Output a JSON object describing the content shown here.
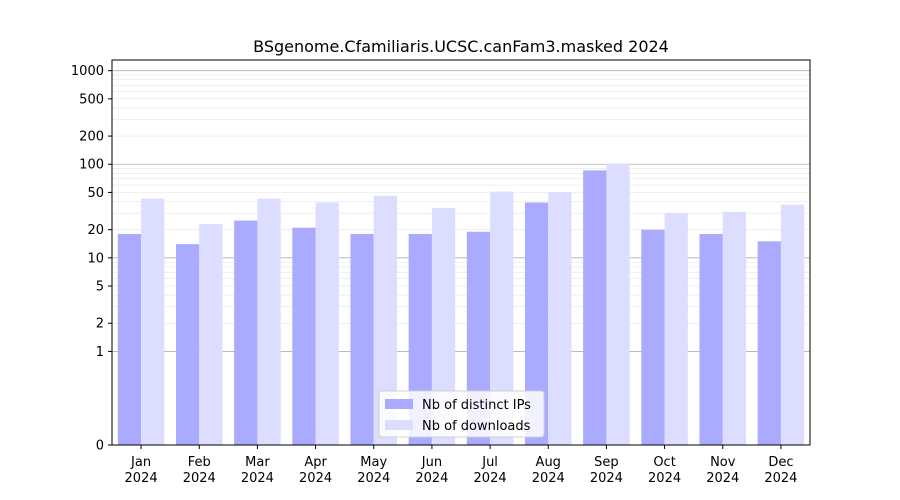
{
  "chart_data": {
    "type": "bar",
    "title": "BSgenome.Cfamiliaris.UCSC.canFam3.masked 2024",
    "xlabel": "",
    "ylabel": "",
    "yscale": "symlog",
    "yticks": [
      0,
      1,
      2,
      5,
      10,
      20,
      50,
      100,
      200,
      500,
      1000
    ],
    "ylim": [
      0,
      1300
    ],
    "categories": [
      "Jan\n2024",
      "Feb\n2024",
      "Mar\n2024",
      "Apr\n2024",
      "May\n2024",
      "Jun\n2024",
      "Jul\n2024",
      "Aug\n2024",
      "Sep\n2024",
      "Oct\n2024",
      "Nov\n2024",
      "Dec\n2024"
    ],
    "series": [
      {
        "name": "Nb of distinct IPs",
        "color": "#aaaaff",
        "values": [
          18,
          14,
          25,
          21,
          18,
          18,
          19,
          39,
          86,
          20,
          18,
          15
        ]
      },
      {
        "name": "Nb of downloads",
        "color": "#ddddff",
        "values": [
          43,
          23,
          43,
          39,
          46,
          34,
          51,
          50,
          102,
          30,
          31,
          37
        ]
      }
    ],
    "grid": true,
    "legend": "bottom-center"
  }
}
